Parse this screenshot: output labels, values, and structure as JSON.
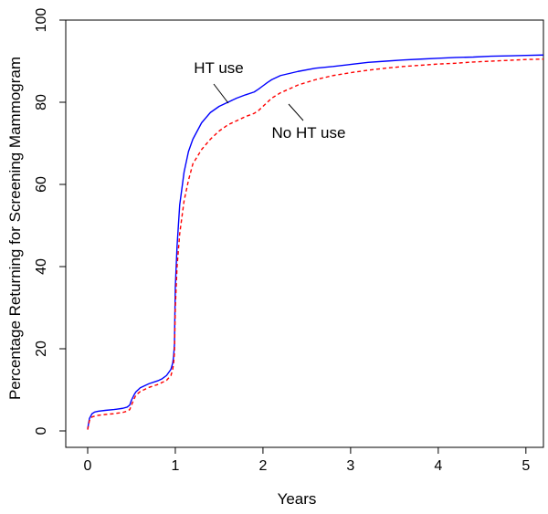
{
  "chart_data": {
    "type": "line",
    "title": "",
    "xlabel": "Years",
    "ylabel": "Percentage Returning for Screening Mammogram",
    "xlim": [
      -0.25,
      5.2
    ],
    "ylim": [
      -4,
      100
    ],
    "xticks": [
      0,
      1,
      2,
      3,
      4,
      5
    ],
    "yticks": [
      0,
      20,
      40,
      60,
      80,
      100
    ],
    "grid": false,
    "series": [
      {
        "name": "HT use",
        "color": "#0000ff",
        "dash": "solid",
        "x": [
          0.0,
          0.02,
          0.05,
          0.08,
          0.12,
          0.2,
          0.3,
          0.4,
          0.45,
          0.48,
          0.5,
          0.53,
          0.55,
          0.6,
          0.7,
          0.8,
          0.85,
          0.9,
          0.95,
          0.97,
          0.98,
          0.99,
          1.0,
          1.02,
          1.05,
          1.1,
          1.15,
          1.2,
          1.3,
          1.4,
          1.5,
          1.6,
          1.7,
          1.8,
          1.9,
          1.95,
          2.0,
          2.05,
          2.1,
          2.2,
          2.4,
          2.6,
          2.8,
          3.0,
          3.2,
          3.4,
          3.6,
          3.8,
          4.0,
          4.2,
          4.4,
          4.6,
          4.8,
          5.0,
          5.2
        ],
        "y": [
          0.5,
          3.0,
          4.2,
          4.6,
          4.8,
          5.0,
          5.2,
          5.5,
          5.8,
          6.3,
          7.5,
          8.8,
          9.5,
          10.5,
          11.5,
          12.2,
          12.7,
          13.5,
          15.0,
          16.5,
          18.0,
          21.0,
          35.0,
          45.0,
          55.0,
          63.0,
          68.0,
          71.0,
          75.0,
          77.5,
          79.0,
          80.0,
          81.0,
          81.8,
          82.5,
          83.2,
          84.0,
          84.8,
          85.5,
          86.5,
          87.5,
          88.3,
          88.7,
          89.2,
          89.7,
          90.0,
          90.3,
          90.5,
          90.7,
          90.9,
          91.0,
          91.2,
          91.3,
          91.4,
          91.5
        ]
      },
      {
        "name": "No HT use",
        "color": "#ff0000",
        "dash": "dashed",
        "x": [
          0.0,
          0.02,
          0.05,
          0.08,
          0.12,
          0.2,
          0.3,
          0.4,
          0.45,
          0.48,
          0.5,
          0.53,
          0.55,
          0.6,
          0.7,
          0.8,
          0.85,
          0.9,
          0.95,
          0.97,
          0.98,
          0.99,
          1.0,
          1.02,
          1.05,
          1.1,
          1.15,
          1.2,
          1.3,
          1.4,
          1.5,
          1.6,
          1.7,
          1.8,
          1.9,
          1.95,
          2.0,
          2.05,
          2.1,
          2.2,
          2.4,
          2.6,
          2.8,
          3.0,
          3.2,
          3.4,
          3.6,
          3.8,
          4.0,
          4.2,
          4.4,
          4.6,
          4.8,
          5.0,
          5.2
        ],
        "y": [
          0.3,
          2.5,
          3.4,
          3.6,
          3.8,
          4.0,
          4.2,
          4.5,
          4.8,
          5.2,
          6.3,
          7.8,
          8.7,
          9.6,
          10.6,
          11.3,
          11.8,
          12.3,
          13.5,
          15.0,
          16.3,
          19.0,
          30.0,
          40.0,
          48.0,
          56.0,
          61.0,
          65.0,
          68.5,
          71.0,
          73.0,
          74.5,
          75.5,
          76.5,
          77.3,
          78.0,
          79.0,
          80.0,
          81.0,
          82.3,
          84.2,
          85.5,
          86.5,
          87.2,
          87.8,
          88.3,
          88.7,
          89.0,
          89.3,
          89.5,
          89.8,
          90.0,
          90.2,
          90.4,
          90.5
        ]
      }
    ],
    "annotations": [
      {
        "text": "HT use",
        "series": "HT use"
      },
      {
        "text": "No HT use",
        "series": "No HT use"
      }
    ]
  }
}
